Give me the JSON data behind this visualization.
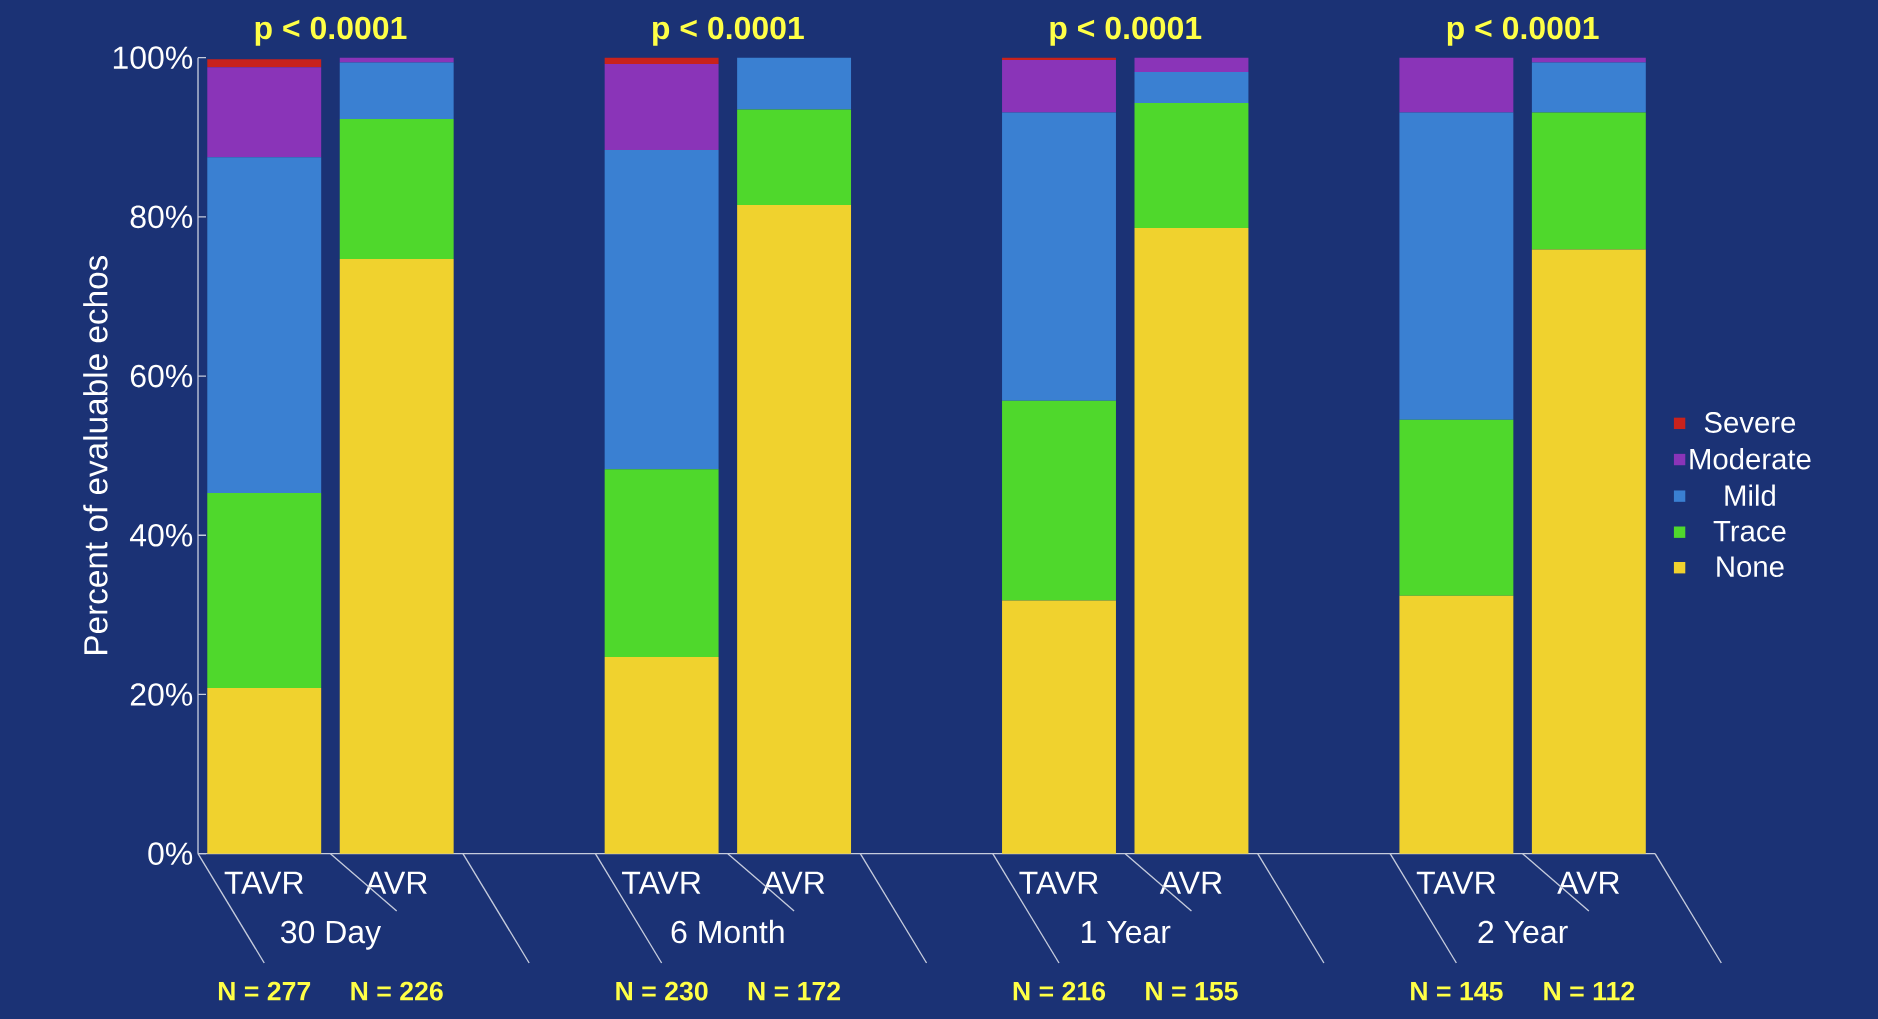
{
  "chart_data": {
    "type": "bar",
    "stacked": true,
    "categories": [
      "TAVR",
      "AVR",
      null,
      "TAVR",
      "AVR",
      null,
      "TAVR",
      "AVR",
      null,
      "TAVR",
      "AVR"
    ],
    "ylabel": "Percent of evaluable echos",
    "ylim": [
      0,
      100
    ],
    "yticks": [
      {
        "value": 0,
        "label": "0%"
      },
      {
        "value": 20,
        "label": "20%"
      },
      {
        "value": 40,
        "label": "40%"
      },
      {
        "value": 60,
        "label": "60%"
      },
      {
        "value": 80,
        "label": "80%"
      },
      {
        "value": 100,
        "label": "100%"
      }
    ],
    "series": [
      {
        "name": "None",
        "color": "#f0d22e",
        "values": [
          20.8,
          74.7,
          null,
          24.7,
          81.5,
          null,
          31.8,
          78.6,
          null,
          32.4,
          75.9
        ]
      },
      {
        "name": "Trace",
        "color": "#4fd82c",
        "values": [
          24.5,
          17.6,
          null,
          23.6,
          12.0,
          null,
          25.1,
          15.7,
          null,
          22.1,
          17.2
        ]
      },
      {
        "name": "Mild",
        "color": "#3a80d2",
        "values": [
          42.2,
          7.1,
          null,
          40.1,
          6.5,
          null,
          36.2,
          3.9,
          null,
          38.6,
          6.3
        ]
      },
      {
        "name": "Moderate",
        "color": "#8a34b8",
        "values": [
          11.3,
          0.6,
          null,
          10.8,
          0,
          null,
          6.6,
          1.8,
          null,
          6.9,
          0.6
        ]
      },
      {
        "name": "Severe",
        "color": "#c8221c",
        "values": [
          1.0,
          0,
          null,
          0.8,
          0,
          null,
          0.3,
          0,
          null,
          0,
          0
        ]
      }
    ],
    "legend": "right",
    "annotations": [
      "p < 0.0001",
      "p < 0.0001",
      "p < 0.0001",
      "p < 0.0001",
      "30 Day",
      "6 Month",
      "1 Year",
      "2 Year",
      "N = 277",
      "N = 226",
      "N = 230",
      "N = 172",
      "N = 216",
      "N = 155",
      "N = 145",
      "N = 112"
    ]
  }
}
